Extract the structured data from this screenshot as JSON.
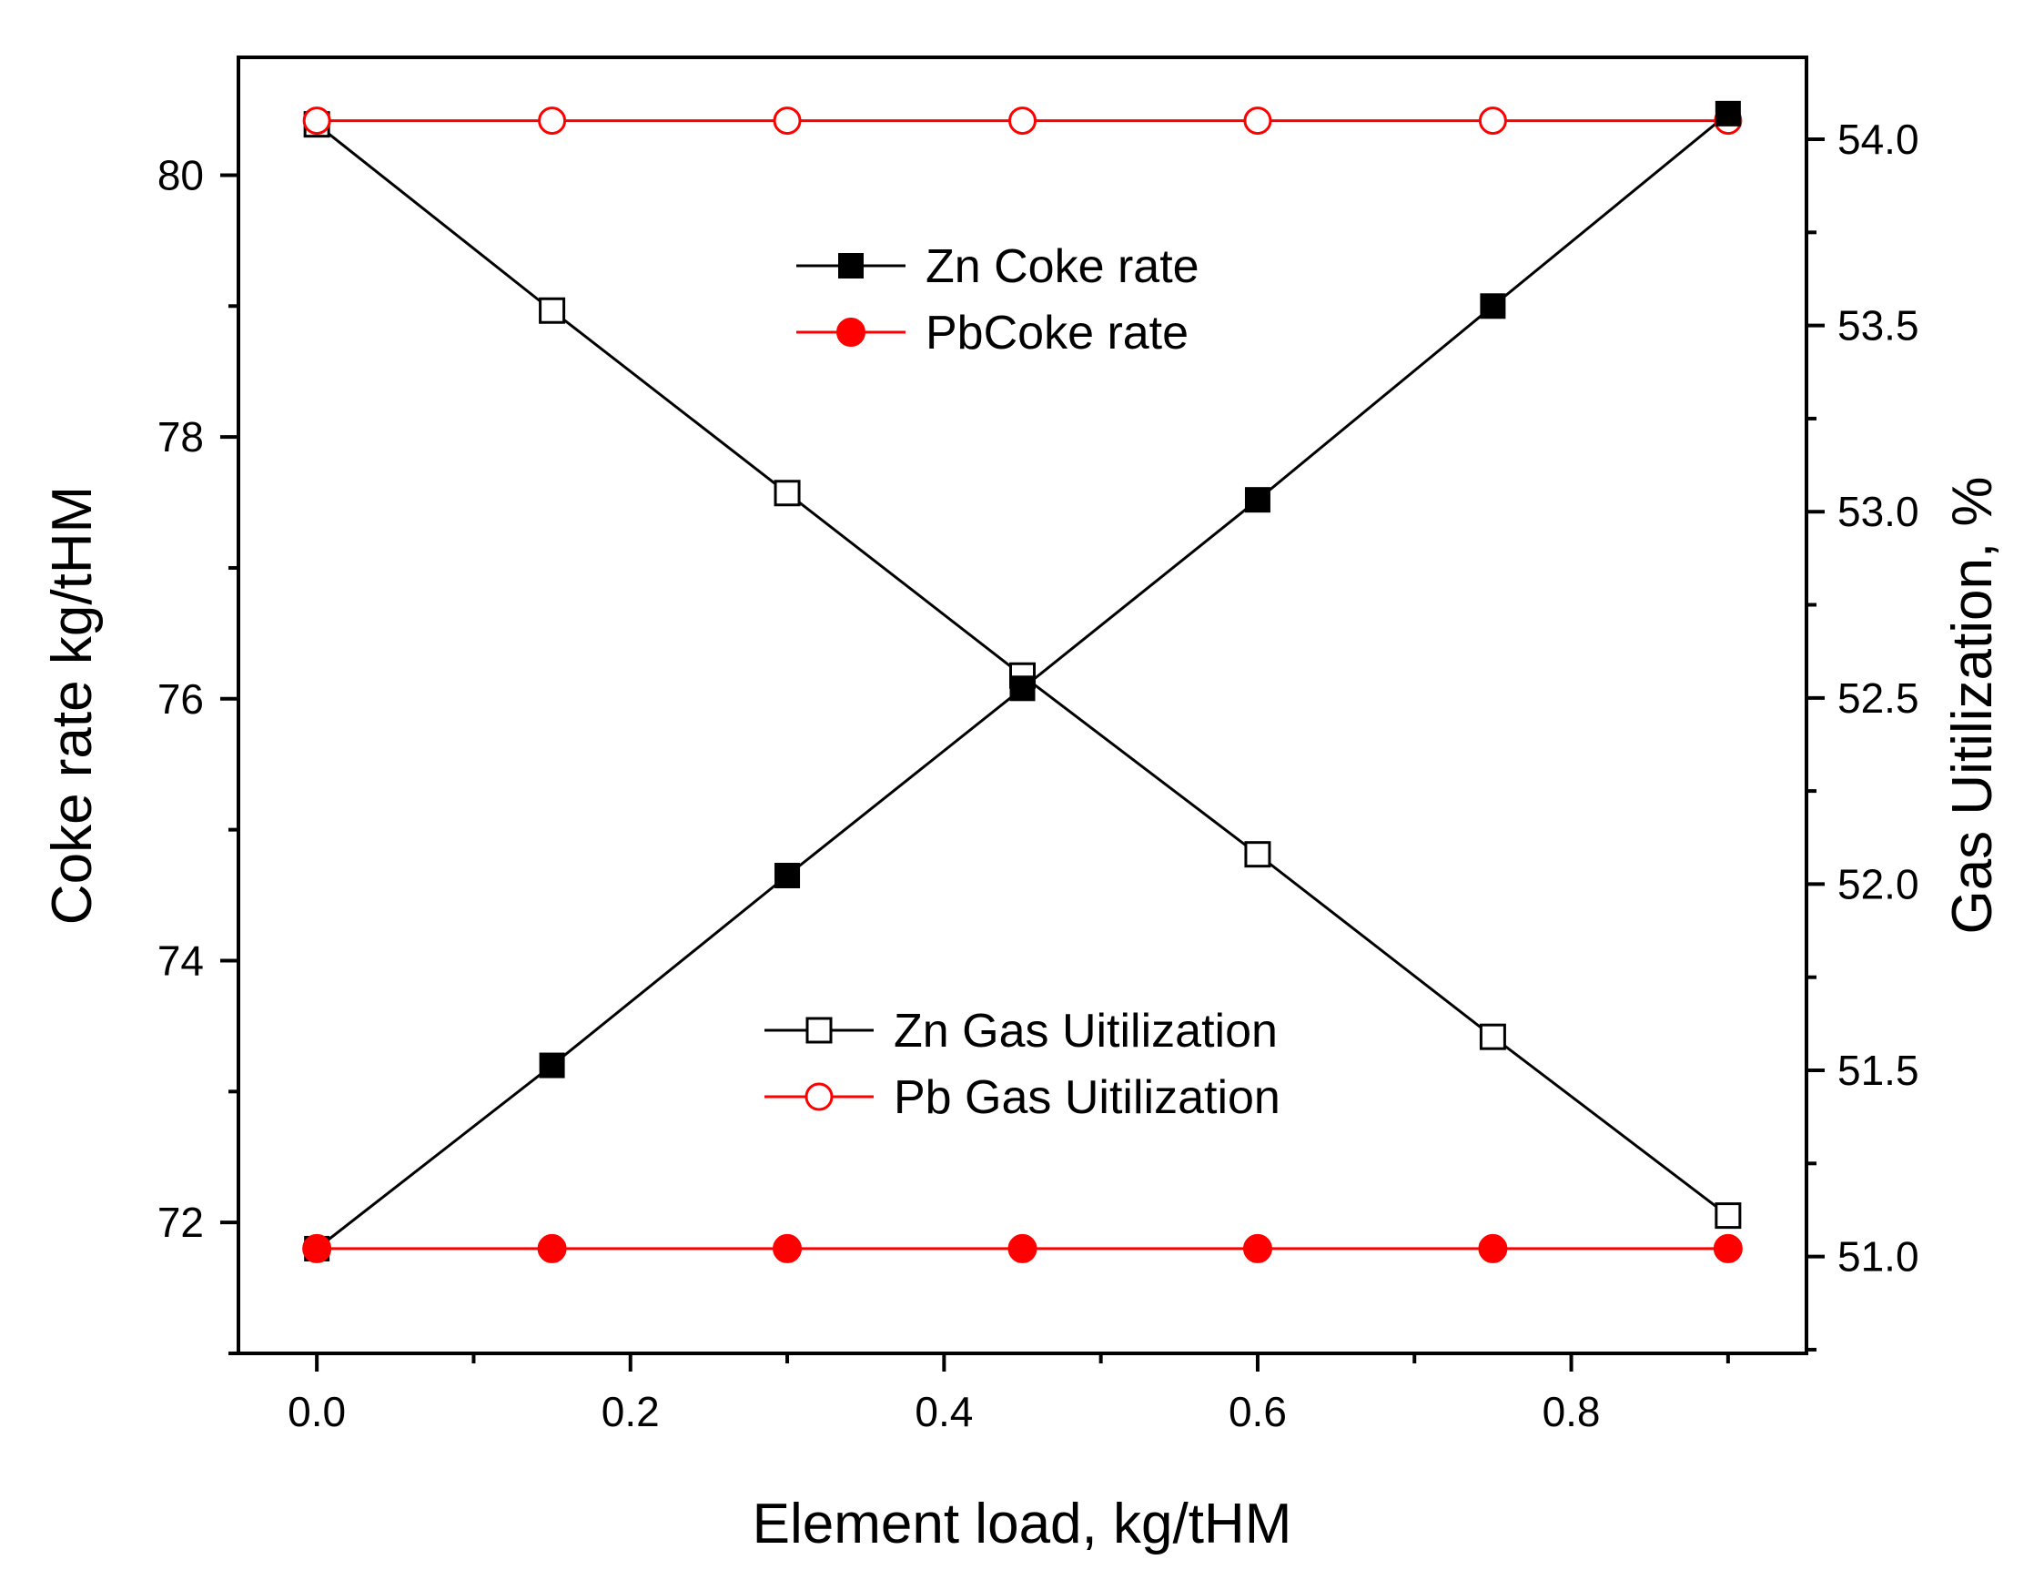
{
  "chart_data": {
    "type": "line",
    "title": "",
    "xlabel": "Element load, kg/tHM",
    "ylabel": "Coke rate kg/tHM",
    "y2label": "Gas Uitilization, %",
    "xlim": [
      -0.05,
      0.95
    ],
    "ylim": [
      71,
      80.9
    ],
    "y2lim": [
      50.74,
      54.22
    ],
    "grid": false,
    "x": [
      0.0,
      0.15,
      0.3,
      0.45,
      0.6,
      0.75,
      0.9
    ],
    "x_ticks": [
      "0.0",
      "0.2",
      "0.4",
      "0.6",
      "0.8"
    ],
    "y_ticks": [
      "72",
      "74",
      "76",
      "78",
      "80"
    ],
    "y2_ticks": [
      "51.0",
      "51.5",
      "52.0",
      "52.5",
      "53.0",
      "53.5",
      "54.0"
    ],
    "series": [
      {
        "name": "Zn Coke rate",
        "axis": "left",
        "marker": "filled-square",
        "color": "#000000",
        "values": [
          71.8,
          73.2,
          74.65,
          76.08,
          77.52,
          79.0,
          80.47
        ]
      },
      {
        "name": "PbCoke rate",
        "axis": "left",
        "marker": "filled-circle",
        "color": "#ff0000",
        "values": [
          71.8,
          71.8,
          71.8,
          71.8,
          71.8,
          71.8,
          71.8
        ]
      },
      {
        "name": "Zn Gas Uitilization",
        "axis": "right",
        "marker": "open-square",
        "color": "#000000",
        "values": [
          54.04,
          53.54,
          53.05,
          52.56,
          52.08,
          51.59,
          51.11
        ]
      },
      {
        "name": "Pb Gas Uitilization",
        "axis": "right",
        "marker": "open-circle",
        "color": "#ff0000",
        "values": [
          54.05,
          54.05,
          54.05,
          54.05,
          54.05,
          54.05,
          54.05
        ]
      }
    ],
    "legends": [
      {
        "position": "upper-center",
        "entries": [
          "Zn Coke rate",
          "PbCoke rate"
        ]
      },
      {
        "position": "lower-center",
        "entries": [
          "Zn Gas Uitilization",
          "Pb Gas Uitilization"
        ]
      }
    ]
  }
}
